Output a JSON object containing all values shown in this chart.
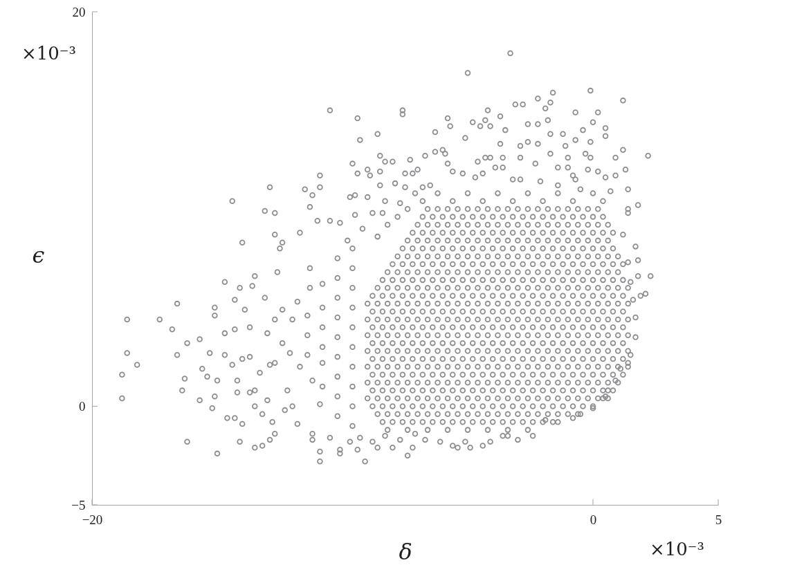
{
  "chart_data": {
    "type": "scatter",
    "xlabel": "δ",
    "ylabel": "ϵ",
    "annotations": [
      "×10⁻³",
      "×10⁻³"
    ],
    "xlim": [
      -20,
      5
    ],
    "ylim": [
      -5,
      20
    ],
    "xticks": [
      -20,
      0,
      5
    ],
    "yticks": [
      -5,
      0,
      20
    ],
    "marker": "circle",
    "grid": false,
    "series": [
      {
        "color": "#8e8d92",
        "x": [
          -18.6,
          -18.6,
          -18.2,
          -18.8,
          -18.8,
          -17.3,
          -16.8,
          -16.6,
          -16.2,
          -15.7,
          -16.6,
          -16.3,
          -16.4,
          -16.2,
          -15,
          -15.3,
          -15.6,
          -15.4,
          -15.7,
          -15.1,
          -15.2,
          -15,
          -14.7,
          -14.7,
          -14.4,
          -14,
          -12.9,
          -13.1,
          -12.7,
          -12.7,
          -12.4,
          -12.5,
          -10.9,
          -10.9,
          -11.5,
          -11.2,
          -11.3,
          -11,
          -11.7,
          -14.7,
          -15.1,
          -15.1,
          -14.3,
          -14.1,
          -13.6,
          -13.5,
          -12.6,
          -13.9,
          -14.3,
          -13.7,
          -14.1,
          -13.5,
          -13.2,
          -12.9,
          -12.7,
          -14.6,
          -14.3,
          -14,
          -13.5,
          -13.2,
          -13,
          -11.2,
          -11.2,
          -10.9,
          -10.9,
          -13.7,
          -14.2,
          -14.2,
          -14.4,
          -14,
          -13.7,
          -13.3,
          -12.9,
          -12.7,
          -12.4,
          -12,
          -11.8,
          -11.3,
          -11.3,
          -12.1,
          -11.7,
          -12.2,
          -12,
          -11.8,
          -12.3,
          -12.8,
          -11.2,
          -10.9,
          -13.5,
          -13.1,
          -12.7,
          -13,
          -12.4,
          -3.3,
          -5,
          -10.5,
          -9.4,
          -9.3,
          -8.6,
          -7.6,
          -7.6,
          -6.3,
          -5.8,
          -5.7,
          -5.1,
          -4.8,
          -4.5,
          -4.3,
          -4.2,
          -4.1,
          -3.7,
          -3.5,
          -3.7,
          -3.1,
          -2.8,
          -2.2,
          -1.6,
          -1.7,
          -1.9,
          -1.8,
          -2.6,
          -2.2,
          -0.1,
          1.2,
          -0.7,
          0.2,
          0,
          0.5,
          0.5,
          -0.4,
          -0.7,
          -0.1,
          -1.1,
          -1.2,
          -1.7,
          2.2,
          1.2,
          0.9,
          1.3,
          1.4,
          1.8,
          1.4,
          -0.1,
          -0.3,
          0.2,
          0.5,
          0.9,
          0.7,
          -0.2,
          -1,
          -1,
          -1.7,
          -2.6,
          -2.2,
          -2.9,
          -2.9,
          -3.6,
          -4.1,
          -4.6,
          -4.3,
          -5.9,
          -6.3,
          -6.7,
          -6,
          -7.3,
          -8,
          -8.3,
          -8.5,
          -9.6,
          -9.4,
          -9,
          -8.9,
          -8.5,
          -9.7,
          -9.5,
          -9,
          -8.5,
          -8.3,
          -7.9,
          -7.5,
          -7.5,
          -7,
          -7.2,
          -5.8,
          -5.6,
          -5.2,
          -4.7,
          -4.4,
          -3.9,
          -3.6,
          -3.2,
          -2.9,
          -2.3,
          -2.1,
          -1.4,
          -0.8,
          -0.7,
          -1.4,
          -0.5,
          0,
          -6.5,
          -6.8,
          -7.1,
          -7.7,
          -8.4,
          -8.8,
          -9.5,
          -10.5,
          -10.1,
          1.7,
          1.8,
          2.3,
          1.8,
          2.1,
          1.9,
          1.7,
          1.7,
          1.5,
          1.4,
          1.1,
          0.9,
          0.6,
          0.4,
          0,
          1.4,
          1.2,
          1.4,
          1.5,
          1.6,
          -9.1,
          -10.1,
          -10.1,
          -9.4,
          -8.6,
          -8,
          -7.4,
          -7.2,
          -6.7,
          -6.1,
          -5.6,
          -5.4,
          -4.9,
          -4.4,
          -4.1,
          -3.6,
          -3.4,
          -3,
          -2.4,
          -1.9,
          -1.4,
          -0.8,
          -0.5,
          0.5,
          -10.5,
          -9.7,
          -8.8,
          -7.7,
          -9.3,
          -8.3,
          -7.1,
          -5.1,
          -9.6,
          -9.6,
          -9.6,
          -9.6,
          -9.6,
          -9.6,
          -9.6,
          -9.6,
          -9.6,
          -9.6,
          -10.2,
          -10.2,
          -10.2,
          -10.2,
          -10.2,
          -10.2,
          -10.2,
          -10.2,
          -10.2,
          -10.8,
          -10.8,
          -10.8,
          -10.8,
          -10.8,
          -10.8,
          -11.4,
          -11.4,
          -11.4,
          -8.6,
          -9.2,
          -8.2,
          -9.8,
          -7.8,
          -7.4,
          -8.2,
          -7.4,
          -6.6,
          -5.8,
          -5,
          -4.2,
          -3.4,
          -2.6,
          -6.8,
          -5.6,
          -4.4,
          -3.2,
          -2,
          -0.8,
          0.4,
          -6.2,
          -5,
          -3.8,
          -2.6,
          -1.4,
          -8.4,
          -8,
          -7.6,
          -7.2,
          -6.8,
          -6.4,
          -6,
          -5.6,
          -5.2,
          -4.8,
          -4.4,
          -4,
          -3.6,
          -3.2,
          -2.8,
          -2.4,
          -2,
          -1.6,
          -8.6,
          -8.2,
          -7.8,
          -7.4,
          -7,
          -6.6,
          -6.2,
          -5.8,
          -5.4,
          -5,
          -4.6,
          -4.2,
          -3.8,
          -3.4,
          -3,
          -2.6,
          -2.2,
          -1.8,
          -1.4,
          -1,
          -0.6,
          -8.8,
          -8.4,
          -8,
          -7.6,
          -7.2,
          -6.8,
          -6.4,
          -6,
          -5.6,
          -5.2,
          -4.8,
          -4.4,
          -4,
          -3.6,
          -3.2,
          -2.8,
          -2.4,
          -2,
          -1.6,
          -1.2,
          -0.8,
          -0.4,
          0,
          -9,
          -8.6,
          -8.2,
          -7.8,
          -7.4,
          -7,
          -6.6,
          -6.2,
          -5.8,
          -5.4,
          -5,
          -4.6,
          -4.2,
          -3.8,
          -3.4,
          -3,
          -2.6,
          -2.2,
          -1.8,
          -1.4,
          -1,
          -0.6,
          -0.2,
          0.2,
          0.6,
          -8.8,
          -8.4,
          -8,
          -7.6,
          -7.2,
          -6.8,
          -6.4,
          -6,
          -5.6,
          -5.2,
          -4.8,
          -4.4,
          -4,
          -3.6,
          -3.2,
          -2.8,
          -2.4,
          -2,
          -1.6,
          -1.2,
          -0.8,
          -0.4,
          0,
          0.4,
          0.8,
          -9,
          -8.6,
          -8.2,
          -7.8,
          -7.4,
          -7,
          -6.6,
          -6.2,
          -5.8,
          -5.4,
          -5,
          -4.6,
          -4.2,
          -3.8,
          -3.4,
          -3,
          -2.6,
          -2.2,
          -1.8,
          -1.4,
          -1,
          -0.6,
          -0.2,
          0.2,
          0.6,
          1,
          -8.8,
          -8.4,
          -8,
          -7.6,
          -7.2,
          -6.8,
          -6.4,
          -6,
          -5.6,
          -5.2,
          -4.8,
          -4.4,
          -4,
          -3.6,
          -3.2,
          -2.8,
          -2.4,
          -2,
          -1.6,
          -1.2,
          -0.8,
          -0.4,
          0,
          0.4,
          0.8,
          1.2,
          -9,
          -8.6,
          -8.2,
          -7.8,
          -7.4,
          -7,
          -6.6,
          -6.2,
          -5.8,
          -5.4,
          -5,
          -4.6,
          -4.2,
          -3.8,
          -3.4,
          -3,
          -2.6,
          -2.2,
          -1.8,
          -1.4,
          -1,
          -0.6,
          -0.2,
          0.2,
          0.6,
          1,
          1.4,
          -8.8,
          -8.4,
          -8,
          -7.6,
          -7.2,
          -6.8,
          -6.4,
          -6,
          -5.6,
          -5.2,
          -4.8,
          -4.4,
          -4,
          -3.6,
          -3.2,
          -2.8,
          -2.4,
          -2,
          -1.6,
          -1.2,
          -0.8,
          -0.4,
          0,
          0.4,
          0.8,
          1.2,
          -9,
          -8.6,
          -8.2,
          -7.8,
          -7.4,
          -7,
          -6.6,
          -6.2,
          -5.8,
          -5.4,
          -5,
          -4.6,
          -4.2,
          -3.8,
          -3.4,
          -3,
          -2.6,
          -2.2,
          -1.8,
          -1.4,
          -1,
          -0.6,
          -0.2,
          0.2,
          0.6,
          1,
          1.4,
          -8.8,
          -8.4,
          -8,
          -7.6,
          -7.2,
          -6.8,
          -6.4,
          -6,
          -5.6,
          -5.2,
          -4.8,
          -4.4,
          -4,
          -3.6,
          -3.2,
          -2.8,
          -2.4,
          -2,
          -1.6,
          -1.2,
          -0.8,
          -0.4,
          0,
          0.4,
          0.8,
          1.2,
          -9,
          -8.6,
          -8.2,
          -7.8,
          -7.4,
          -7,
          -6.6,
          -6.2,
          -5.8,
          -5.4,
          -5,
          -4.6,
          -4.2,
          -3.8,
          -3.4,
          -3,
          -2.6,
          -2.2,
          -1.8,
          -1.4,
          -1,
          -0.6,
          -0.2,
          0.2,
          0.6,
          1,
          1.4,
          -8.8,
          -8.4,
          -8,
          -7.6,
          -7.2,
          -6.8,
          -6.4,
          -6,
          -5.6,
          -5.2,
          -4.8,
          -4.4,
          -4,
          -3.6,
          -3.2,
          -2.8,
          -2.4,
          -2,
          -1.6,
          -1.2,
          -0.8,
          -0.4,
          0,
          0.4,
          0.8,
          1.2,
          -9,
          -8.6,
          -8.2,
          -7.8,
          -7.4,
          -7,
          -6.6,
          -6.2,
          -5.8,
          -5.4,
          -5,
          -4.6,
          -4.2,
          -3.8,
          -3.4,
          -3,
          -2.6,
          -2.2,
          -1.8,
          -1.4,
          -1,
          -0.6,
          -0.2,
          0.2,
          0.6,
          1,
          1.4,
          -8.8,
          -8.4,
          -8,
          -7.6,
          -7.2,
          -6.8,
          -6.4,
          -6,
          -5.6,
          -5.2,
          -4.8,
          -4.4,
          -4,
          -3.6,
          -3.2,
          -2.8,
          -2.4,
          -2,
          -1.6,
          -1.2,
          -0.8,
          -0.4,
          0,
          0.4,
          0.8,
          1.2,
          -9,
          -8.6,
          -8.2,
          -7.8,
          -7.4,
          -7,
          -6.6,
          -6.2,
          -5.8,
          -5.4,
          -5,
          -4.6,
          -4.2,
          -3.8,
          -3.4,
          -3,
          -2.6,
          -2.2,
          -1.8,
          -1.4,
          -1,
          -0.6,
          -0.2,
          0.2,
          0.6,
          1,
          1.4,
          -8.8,
          -8.4,
          -8,
          -7.6,
          -7.2,
          -6.8,
          -6.4,
          -6,
          -5.6,
          -5.2,
          -4.8,
          -4.4,
          -4,
          -3.6,
          -3.2,
          -2.8,
          -2.4,
          -2,
          -1.6,
          -1.2,
          -0.8,
          -0.4,
          0,
          0.4,
          0.8,
          1.2,
          -8.6,
          -8.2,
          -7.8,
          -7.4,
          -7,
          -6.6,
          -6.2,
          -5.8,
          -5.4,
          -5,
          -4.6,
          -4.2,
          -3.8,
          -3.4,
          -3,
          -2.6,
          -2.2,
          -1.8,
          -1.4,
          -1,
          -0.6,
          -0.2,
          0.2,
          0.6,
          1,
          1.4,
          -8.4,
          -8,
          -7.6,
          -7.2,
          -6.8,
          -6.4,
          -6,
          -5.6,
          -5.2,
          -4.8,
          -4.4,
          -4,
          -3.6,
          -3.2,
          -2.8,
          -2.4,
          -2,
          -1.6,
          -1.2,
          -0.8,
          -0.4,
          0,
          0.4,
          0.8,
          1.2,
          -8.2,
          -7.8,
          -7.4,
          -7,
          -6.6,
          -6.2,
          -5.8,
          -5.4,
          -5,
          -4.6,
          -4.2,
          -3.8,
          -3.4,
          -3,
          -2.6,
          -2.2,
          -1.8,
          -1.4,
          -1,
          -0.6,
          -0.2,
          0.2,
          0.6,
          1,
          -8,
          -7.6,
          -7.2,
          -6.8,
          -6.4,
          -6,
          -5.6,
          -5.2,
          -4.8,
          -4.4,
          -4,
          -3.6,
          -3.2,
          -2.8,
          -2.4,
          -2,
          -1.6,
          -1.2,
          -0.8,
          -0.4,
          0,
          0.4,
          0.8,
          1.2,
          -7.8,
          -7.4,
          -7,
          -6.6,
          -6.2,
          -5.8,
          -5.4,
          -5,
          -4.6,
          -4.2,
          -3.8,
          -3.4,
          -3,
          -2.6,
          -2.2,
          -1.8,
          -1.4,
          -1,
          -0.6,
          -0.2,
          0.2,
          0.6,
          1,
          -7.6,
          -7.2,
          -6.8,
          -6.4,
          -6,
          -5.6,
          -5.2,
          -4.8,
          -4.4,
          -4,
          -3.6,
          -3.2,
          -2.8,
          -2.4,
          -2,
          -1.6,
          -1.2,
          -0.8,
          -0.4,
          0,
          0.4,
          0.8,
          -7.4,
          -7,
          -6.6,
          -6.2,
          -5.8,
          -5.4,
          -5,
          -4.6,
          -4.2,
          -3.8,
          -3.4,
          -3,
          -2.6,
          -2.2,
          -1.8,
          -1.4,
          -1,
          -0.6,
          -0.2,
          0.2,
          0.6,
          -7.2,
          -6.8,
          -6.4,
          -6,
          -5.6,
          -5.2,
          -4.8,
          -4.4,
          -4,
          -3.6,
          -3.2,
          -2.8,
          -2.4,
          -2,
          -1.6,
          -1.2,
          -0.8,
          -0.4,
          0,
          0.4,
          0.8,
          -7,
          -6.6,
          -6.2,
          -5.8,
          -5.4,
          -5,
          -4.6,
          -4.2,
          -3.8,
          -3.4,
          -3,
          -2.6,
          -2.2,
          -1.8,
          -1.4,
          -1,
          -0.6,
          -0.2,
          0.2,
          0.6,
          -6.8,
          -6.4,
          -6,
          -5.6,
          -5.2,
          -4.8,
          -4.4,
          -4,
          -3.6,
          -3.2,
          -2.8,
          -2.4,
          -2,
          -1.6,
          -1.2,
          -0.8,
          -0.4,
          0,
          0.4,
          -6.6,
          -6.2,
          -5.8,
          -5.4,
          -5,
          -4.6,
          -4.2,
          -3.8,
          -3.4,
          -3,
          -2.6,
          -2.2,
          -1.8,
          -1.4,
          -1,
          -0.6,
          -0.2,
          0.2
        ],
        "values": [
          4.4,
          2.7,
          2.1,
          1.6,
          0.4,
          4.4,
          3.9,
          5.2,
          3.2,
          3.4,
          2.6,
          1.4,
          0.8,
          -1.8,
          -2.4,
          2.7,
          1.9,
          1.5,
          0.3,
          0.5,
          -0.1,
          1.3,
          3.7,
          2.6,
          10.4,
          8.3,
          11.1,
          9.9,
          9.8,
          8.7,
          8.3,
          8,
          11.7,
          11.1,
          11,
          10.7,
          10.1,
          9.4,
          8.8,
          6.3,
          5,
          4.6,
          5.4,
          6,
          6.1,
          6.6,
          6.8,
          4.9,
          3.9,
          4,
          -1.8,
          -2.1,
          -2,
          -1.7,
          -1.4,
          -0.6,
          -0.6,
          -0.9,
          0,
          -0.4,
          0.3,
          -1.4,
          -1.7,
          -2.3,
          -2.8,
          0.7,
          0.7,
          1.3,
          2.1,
          2.4,
          2.5,
          1.7,
          2.1,
          2.2,
          3.2,
          4.4,
          5.3,
          7,
          6,
          2.7,
          2,
          0.8,
          0,
          -0.9,
          -0.2,
          -0.8,
          1.3,
          0.1,
          0.8,
          5.5,
          4.4,
          3.7,
          4.9,
          17.9,
          16.9,
          15,
          14.6,
          13.5,
          13.8,
          15,
          14.8,
          13.9,
          14.6,
          14.2,
          13.6,
          14.4,
          14.2,
          14.5,
          15,
          14.2,
          14.7,
          14,
          13.3,
          15.3,
          15.3,
          15.6,
          15.9,
          15.4,
          15.1,
          14.5,
          14.3,
          14.3,
          16,
          15.5,
          14.9,
          14.9,
          14.4,
          14.1,
          13.7,
          14,
          13.5,
          13.4,
          13.2,
          13.8,
          13.8,
          12.7,
          13,
          12.6,
          12,
          11,
          10.2,
          9.8,
          12.6,
          12.8,
          11.9,
          11.6,
          11.7,
          10.9,
          12,
          12.6,
          12.1,
          12.8,
          13.4,
          13.3,
          13.2,
          12.6,
          12.6,
          12.6,
          12.4,
          12.6,
          12.8,
          12.9,
          12.7,
          13,
          12.5,
          12.4,
          12.4,
          12.7,
          12.3,
          11.8,
          12,
          11.7,
          11.9,
          10.6,
          10.7,
          10.6,
          11.2,
          10.4,
          11.3,
          11.1,
          11.8,
          12,
          11.8,
          12.3,
          11.9,
          11.8,
          11.6,
          11.8,
          12.1,
          12.1,
          11.5,
          11.5,
          12.3,
          11.4,
          12.1,
          11.7,
          11.5,
          11.2,
          11,
          10.8,
          11.2,
          11.1,
          10.8,
          10.3,
          9.8,
          9.8,
          9.7,
          9.4,
          9.3,
          8.1,
          7.4,
          6.6,
          6.6,
          5.7,
          5.6,
          4.5,
          3.5,
          2.6,
          2.2,
          1.9,
          1.3,
          0.8,
          0.4,
          -0.1,
          10,
          8.7,
          7.3,
          6.3,
          5.4,
          -2.8,
          -2.4,
          -2.2,
          -2.2,
          -2.1,
          -2.1,
          -2.5,
          -2.1,
          -1.7,
          -1.8,
          -2,
          -2.1,
          -2.1,
          -2,
          -1.8,
          -1.5,
          -1.5,
          -1.7,
          -1.5,
          -0.7,
          -0.8,
          -0.6,
          -0.4,
          0.5,
          -1.6,
          -1.8,
          -1.8,
          -1.7,
          -1.6,
          -1.5,
          -1.4,
          -1.8,
          -1,
          0,
          1,
          2,
          3,
          4,
          5,
          6,
          7,
          8,
          -0.5,
          0.5,
          1.5,
          2.5,
          3.5,
          4.5,
          5.5,
          6.5,
          7.5,
          1,
          2.2,
          3,
          4,
          5,
          6.2,
          2.6,
          3.6,
          4.6,
          8.6,
          9,
          9.2,
          8.4,
          9.6,
          10,
          -1.2,
          -1.2,
          -1.2,
          -1.2,
          -1.2,
          -1.2,
          -1.2,
          -1.2,
          10.4,
          10.4,
          10.4,
          10.4,
          10.4,
          10.4,
          10.4,
          10.8,
          10.8,
          10.8,
          10.8,
          10.8,
          -0.8,
          -0.8,
          -0.8,
          -0.8,
          -0.8,
          -0.8,
          -0.8,
          -0.8,
          -0.8,
          -0.8,
          -0.8,
          -0.8,
          -0.8,
          -0.8,
          -0.8,
          -0.8,
          -0.8,
          -0.8,
          -0.4,
          -0.4,
          -0.4,
          -0.4,
          -0.4,
          -0.4,
          -0.4,
          -0.4,
          -0.4,
          -0.4,
          -0.4,
          -0.4,
          -0.4,
          -0.4,
          -0.4,
          -0.4,
          -0.4,
          -0.4,
          -0.4,
          -0.4,
          -0.4,
          0,
          0,
          0,
          0,
          0,
          0,
          0,
          0,
          0,
          0,
          0,
          0,
          0,
          0,
          0,
          0,
          0,
          0,
          0,
          0,
          0,
          0,
          0,
          0.4,
          0.4,
          0.4,
          0.4,
          0.4,
          0.4,
          0.4,
          0.4,
          0.4,
          0.4,
          0.4,
          0.4,
          0.4,
          0.4,
          0.4,
          0.4,
          0.4,
          0.4,
          0.4,
          0.4,
          0.4,
          0.4,
          0.4,
          0.4,
          0.4,
          0.8,
          0.8,
          0.8,
          0.8,
          0.8,
          0.8,
          0.8,
          0.8,
          0.8,
          0.8,
          0.8,
          0.8,
          0.8,
          0.8,
          0.8,
          0.8,
          0.8,
          0.8,
          0.8,
          0.8,
          0.8,
          0.8,
          0.8,
          0.8,
          0.8,
          1.2,
          1.2,
          1.2,
          1.2,
          1.2,
          1.2,
          1.2,
          1.2,
          1.2,
          1.2,
          1.2,
          1.2,
          1.2,
          1.2,
          1.2,
          1.2,
          1.2,
          1.2,
          1.2,
          1.2,
          1.2,
          1.2,
          1.2,
          1.2,
          1.2,
          1.2,
          1.6,
          1.6,
          1.6,
          1.6,
          1.6,
          1.6,
          1.6,
          1.6,
          1.6,
          1.6,
          1.6,
          1.6,
          1.6,
          1.6,
          1.6,
          1.6,
          1.6,
          1.6,
          1.6,
          1.6,
          1.6,
          1.6,
          1.6,
          1.6,
          1.6,
          1.6,
          2,
          2,
          2,
          2,
          2,
          2,
          2,
          2,
          2,
          2,
          2,
          2,
          2,
          2,
          2,
          2,
          2,
          2,
          2,
          2,
          2,
          2,
          2,
          2,
          2,
          2,
          2,
          2.4,
          2.4,
          2.4,
          2.4,
          2.4,
          2.4,
          2.4,
          2.4,
          2.4,
          2.4,
          2.4,
          2.4,
          2.4,
          2.4,
          2.4,
          2.4,
          2.4,
          2.4,
          2.4,
          2.4,
          2.4,
          2.4,
          2.4,
          2.4,
          2.4,
          2.4,
          2.8,
          2.8,
          2.8,
          2.8,
          2.8,
          2.8,
          2.8,
          2.8,
          2.8,
          2.8,
          2.8,
          2.8,
          2.8,
          2.8,
          2.8,
          2.8,
          2.8,
          2.8,
          2.8,
          2.8,
          2.8,
          2.8,
          2.8,
          2.8,
          2.8,
          2.8,
          2.8,
          3.2,
          3.2,
          3.2,
          3.2,
          3.2,
          3.2,
          3.2,
          3.2,
          3.2,
          3.2,
          3.2,
          3.2,
          3.2,
          3.2,
          3.2,
          3.2,
          3.2,
          3.2,
          3.2,
          3.2,
          3.2,
          3.2,
          3.2,
          3.2,
          3.2,
          3.2,
          3.6,
          3.6,
          3.6,
          3.6,
          3.6,
          3.6,
          3.6,
          3.6,
          3.6,
          3.6,
          3.6,
          3.6,
          3.6,
          3.6,
          3.6,
          3.6,
          3.6,
          3.6,
          3.6,
          3.6,
          3.6,
          3.6,
          3.6,
          3.6,
          3.6,
          3.6,
          3.6,
          4,
          4,
          4,
          4,
          4,
          4,
          4,
          4,
          4,
          4,
          4,
          4,
          4,
          4,
          4,
          4,
          4,
          4,
          4,
          4,
          4,
          4,
          4,
          4,
          4,
          4,
          4.4,
          4.4,
          4.4,
          4.4,
          4.4,
          4.4,
          4.4,
          4.4,
          4.4,
          4.4,
          4.4,
          4.4,
          4.4,
          4.4,
          4.4,
          4.4,
          4.4,
          4.4,
          4.4,
          4.4,
          4.4,
          4.4,
          4.4,
          4.4,
          4.4,
          4.4,
          4.4,
          4.8,
          4.8,
          4.8,
          4.8,
          4.8,
          4.8,
          4.8,
          4.8,
          4.8,
          4.8,
          4.8,
          4.8,
          4.8,
          4.8,
          4.8,
          4.8,
          4.8,
          4.8,
          4.8,
          4.8,
          4.8,
          4.8,
          4.8,
          4.8,
          4.8,
          4.8,
          5.2,
          5.2,
          5.2,
          5.2,
          5.2,
          5.2,
          5.2,
          5.2,
          5.2,
          5.2,
          5.2,
          5.2,
          5.2,
          5.2,
          5.2,
          5.2,
          5.2,
          5.2,
          5.2,
          5.2,
          5.2,
          5.2,
          5.2,
          5.2,
          5.2,
          5.2,
          5.2,
          5.6,
          5.6,
          5.6,
          5.6,
          5.6,
          5.6,
          5.6,
          5.6,
          5.6,
          5.6,
          5.6,
          5.6,
          5.6,
          5.6,
          5.6,
          5.6,
          5.6,
          5.6,
          5.6,
          5.6,
          5.6,
          5.6,
          5.6,
          5.6,
          5.6,
          5.6,
          6,
          6,
          6,
          6,
          6,
          6,
          6,
          6,
          6,
          6,
          6,
          6,
          6,
          6,
          6,
          6,
          6,
          6,
          6,
          6,
          6,
          6,
          6,
          6,
          6,
          6,
          6.4,
          6.4,
          6.4,
          6.4,
          6.4,
          6.4,
          6.4,
          6.4,
          6.4,
          6.4,
          6.4,
          6.4,
          6.4,
          6.4,
          6.4,
          6.4,
          6.4,
          6.4,
          6.4,
          6.4,
          6.4,
          6.4,
          6.4,
          6.4,
          6.4,
          6.8,
          6.8,
          6.8,
          6.8,
          6.8,
          6.8,
          6.8,
          6.8,
          6.8,
          6.8,
          6.8,
          6.8,
          6.8,
          6.8,
          6.8,
          6.8,
          6.8,
          6.8,
          6.8,
          6.8,
          6.8,
          6.8,
          6.8,
          6.8,
          7.2,
          7.2,
          7.2,
          7.2,
          7.2,
          7.2,
          7.2,
          7.2,
          7.2,
          7.2,
          7.2,
          7.2,
          7.2,
          7.2,
          7.2,
          7.2,
          7.2,
          7.2,
          7.2,
          7.2,
          7.2,
          7.2,
          7.2,
          7.2,
          7.6,
          7.6,
          7.6,
          7.6,
          7.6,
          7.6,
          7.6,
          7.6,
          7.6,
          7.6,
          7.6,
          7.6,
          7.6,
          7.6,
          7.6,
          7.6,
          7.6,
          7.6,
          7.6,
          7.6,
          7.6,
          7.6,
          7.6,
          8,
          8,
          8,
          8,
          8,
          8,
          8,
          8,
          8,
          8,
          8,
          8,
          8,
          8,
          8,
          8,
          8,
          8,
          8,
          8,
          8,
          8,
          8.4,
          8.4,
          8.4,
          8.4,
          8.4,
          8.4,
          8.4,
          8.4,
          8.4,
          8.4,
          8.4,
          8.4,
          8.4,
          8.4,
          8.4,
          8.4,
          8.4,
          8.4,
          8.4,
          8.4,
          8.4,
          8.8,
          8.8,
          8.8,
          8.8,
          8.8,
          8.8,
          8.8,
          8.8,
          8.8,
          8.8,
          8.8,
          8.8,
          8.8,
          8.8,
          8.8,
          8.8,
          8.8,
          8.8,
          8.8,
          8.8,
          8.8,
          9.2,
          9.2,
          9.2,
          9.2,
          9.2,
          9.2,
          9.2,
          9.2,
          9.2,
          9.2,
          9.2,
          9.2,
          9.2,
          9.2,
          9.2,
          9.2,
          9.2,
          9.2,
          9.2,
          9.2,
          9.6,
          9.6,
          9.6,
          9.6,
          9.6,
          9.6,
          9.6,
          9.6,
          9.6,
          9.6,
          9.6,
          9.6,
          9.6,
          9.6,
          9.6,
          9.6,
          9.6,
          9.6,
          9.6,
          10,
          10,
          10,
          10,
          10,
          10,
          10,
          10,
          10,
          10,
          10,
          10,
          10,
          10,
          10,
          10,
          10,
          10
        ]
      }
    ]
  }
}
